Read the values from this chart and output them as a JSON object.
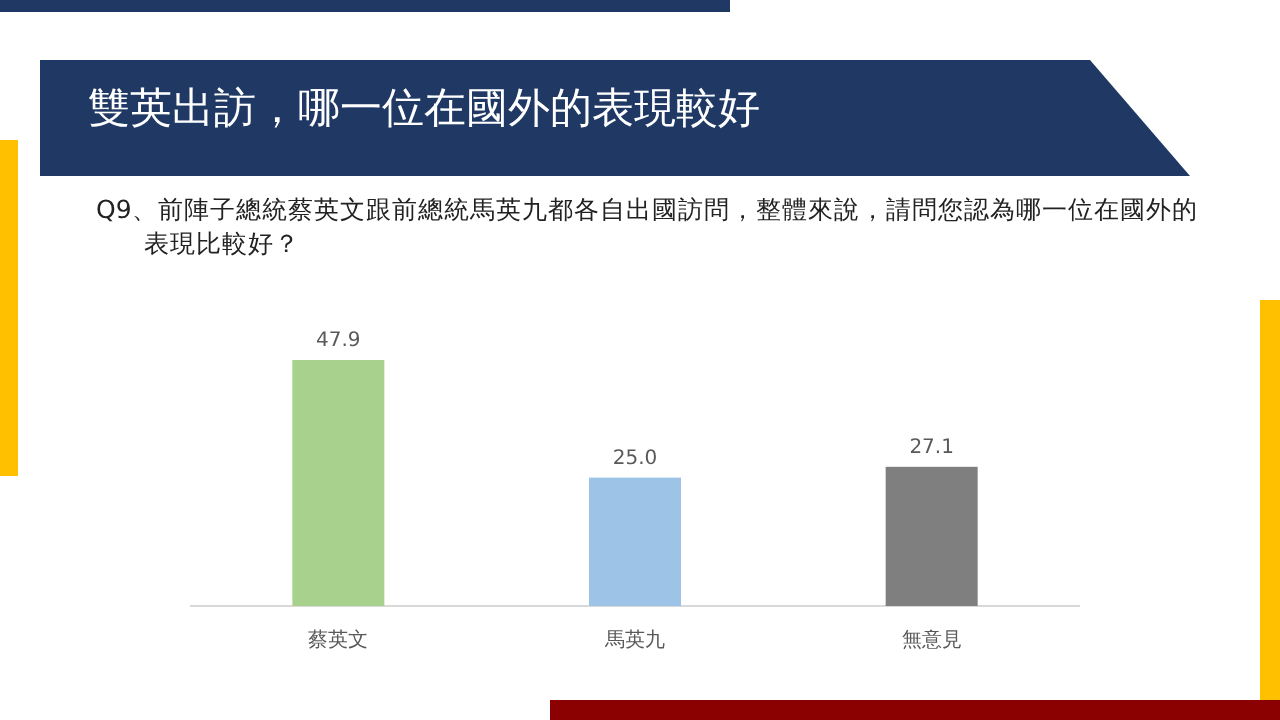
{
  "chart_data": {
    "type": "bar",
    "title": "雙英出訪，哪一位在國外的表現較好",
    "subtitle": "Q9、前陣子總統蔡英文跟前總統馬英九都各自出國訪問，整體來說，請問您認為哪一位在國外的表現比較好？",
    "categories": [
      "蔡英文",
      "馬英九",
      "無意見"
    ],
    "values": [
      47.9,
      25.0,
      27.1
    ],
    "colors": [
      "#a9d18e",
      "#9dc3e6",
      "#7f7f7f"
    ],
    "value_labels": [
      "47.9",
      "25.0",
      "27.1"
    ]
  }
}
